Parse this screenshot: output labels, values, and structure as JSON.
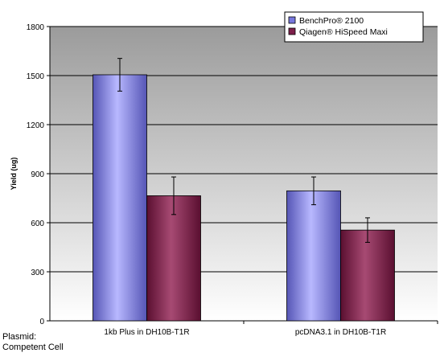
{
  "chart_data": {
    "type": "bar",
    "title": "",
    "xlabel": "",
    "ylabel": "Yield (ug)",
    "ylim": [
      0,
      1800
    ],
    "yticks": [
      0,
      300,
      600,
      900,
      1200,
      1500,
      1800
    ],
    "grid": true,
    "legend_position": "top-right",
    "categories": [
      "1kb Plus in DH10B-T1R",
      "pcDNA3.1 in  DH10B-T1R"
    ],
    "series": [
      {
        "name": "BenchPro® 2100",
        "values": [
          1505,
          795
        ],
        "error": [
          100,
          85
        ],
        "color": "#7777dd"
      },
      {
        "name": "Qiagen® HiSpeed Maxi",
        "values": [
          765,
          555
        ],
        "error": [
          115,
          75
        ],
        "color": "#7d1f4a"
      }
    ],
    "axis_caption": [
      "Plasmid:",
      "Competent Cell"
    ]
  },
  "colors": {
    "plot_bg_top": "#9b9b9b",
    "plot_bg_bottom": "#ffffff",
    "bar1_light": "#b8b8ff",
    "bar1_dark": "#5555b5",
    "bar2_light": "#a74a73",
    "bar2_dark": "#5a0f30"
  }
}
